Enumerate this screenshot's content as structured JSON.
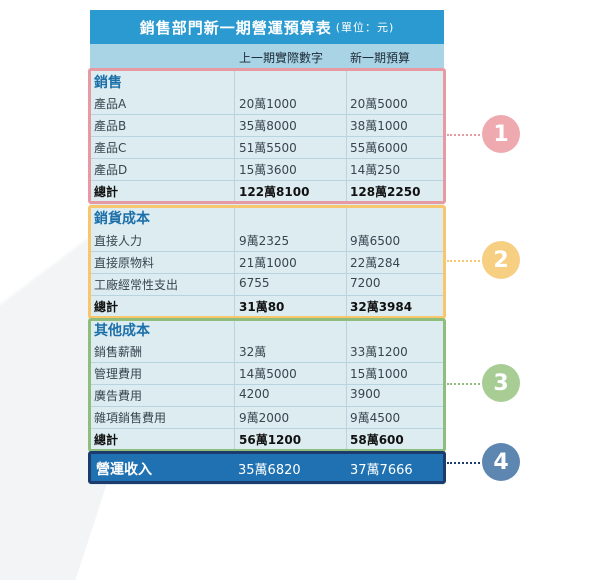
{
  "title": "銷售部門新一期營運預算表",
  "unit": "(單位：元)",
  "headers": [
    "",
    "上一期實際數字",
    "新一期預算"
  ],
  "colors": {
    "title_bg": "#2a9ad0",
    "header_bg": "#a9d4e6",
    "sheet_bg": "#dcecf1",
    "section_text": "#1c6fa8",
    "frame_1": "#e89aa2",
    "frame_2": "#f7c66d",
    "frame_3": "#8fbe7c",
    "frame_4": "#1d3c6e",
    "marker_1": "#eeaaae",
    "marker_2": "#f6cf83",
    "marker_3": "#a7cd95",
    "marker_4": "#5d86b1",
    "income_bg": "#1f71b1"
  },
  "sections": [
    {
      "title": "銷售",
      "rows": [
        [
          "產品A",
          "20萬1000",
          "20萬5000"
        ],
        [
          "產品B",
          "35萬8000",
          "38萬1000"
        ],
        [
          "產品C",
          "51萬5500",
          "55萬6000"
        ],
        [
          "產品D",
          "15萬3600",
          "14萬250"
        ]
      ],
      "total": [
        "總計",
        "122萬8100",
        "128萬2250"
      ],
      "marker": "1"
    },
    {
      "title": "銷貨成本",
      "rows": [
        [
          "直接人力",
          "9萬2325",
          "9萬6500"
        ],
        [
          "直接原物料",
          "21萬1000",
          "22萬284"
        ],
        [
          "工廠經常性支出",
          "6755",
          "7200"
        ]
      ],
      "total": [
        "總計",
        "31萬80",
        "32萬3984"
      ],
      "marker": "2"
    },
    {
      "title": "其他成本",
      "rows": [
        [
          "銷售薪酬",
          "32萬",
          "33萬1200"
        ],
        [
          "管理費用",
          "14萬5000",
          "15萬1000"
        ],
        [
          "廣告費用",
          "4200",
          "3900"
        ],
        [
          "雜項銷售費用",
          "9萬2000",
          "9萬4500"
        ]
      ],
      "total": [
        "總計",
        "56萬1200",
        "58萬600"
      ],
      "marker": "3"
    }
  ],
  "income": [
    "營運收入",
    "35萬6820",
    "37萬7666"
  ],
  "income_marker": "4"
}
